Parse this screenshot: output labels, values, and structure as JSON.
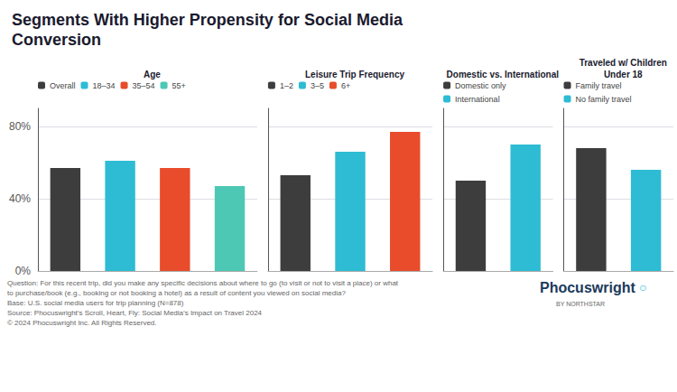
{
  "title": "Segments With Higher Propensity for Social Media\nConversion",
  "chart_data": [
    {
      "type": "bar",
      "title": "Age",
      "categories": [
        "Overall",
        "18–34",
        "35–54",
        "55+"
      ],
      "values": [
        57,
        61,
        57,
        47
      ],
      "colors": [
        "#3d3d3d",
        "#2dbcd4",
        "#e84c2b",
        "#4dc8b4"
      ],
      "ylim": [
        0,
        90
      ],
      "yticks": [
        {
          "value": 0,
          "label": "0%"
        },
        {
          "value": 40,
          "label": "40%"
        },
        {
          "value": 80,
          "label": "80%"
        }
      ],
      "grid": true,
      "legend": "top left",
      "tick_labels": "y"
    },
    {
      "type": "bar",
      "title": "Leisure Trip Frequency",
      "categories": [
        "1–2",
        "3–5",
        "6+"
      ],
      "values": [
        53,
        66,
        77
      ],
      "colors": [
        "#3d3d3d",
        "#2dbcd4",
        "#e84c2b"
      ],
      "ylim": [
        0,
        90
      ],
      "yticks": [
        {
          "value": 0,
          "label": "0%"
        },
        {
          "value": 40,
          "label": "40%"
        },
        {
          "value": 80,
          "label": "80%"
        }
      ],
      "grid": true,
      "legend": "top left",
      "tick_labels": false
    },
    {
      "type": "bar",
      "title": "Domestic vs. International",
      "categories": [
        "Domestic only",
        "International"
      ],
      "values": [
        50,
        70
      ],
      "colors": [
        "#3d3d3d",
        "#2dbcd4"
      ],
      "ylim": [
        0,
        90
      ],
      "yticks": [
        {
          "value": 0,
          "label": "0%"
        },
        {
          "value": 40,
          "label": "40%"
        },
        {
          "value": 80,
          "label": "80%"
        }
      ],
      "grid": true,
      "legend": "top left",
      "tick_labels": false
    },
    {
      "type": "bar",
      "title": "Traveled w/ Children\nUnder 18",
      "categories": [
        "Family travel",
        "No family travel"
      ],
      "values": [
        68,
        56
      ],
      "colors": [
        "#3d3d3d",
        "#2dbcd4"
      ],
      "ylim": [
        0,
        90
      ],
      "yticks": [
        {
          "value": 0,
          "label": "0%"
        },
        {
          "value": 40,
          "label": "40%"
        },
        {
          "value": 80,
          "label": "80%"
        }
      ],
      "grid": true,
      "legend": "top left",
      "tick_labels": false
    }
  ],
  "annotations": [
    {
      "text": "Question: For this recent trip, did you make any specific decisions about where to go (to visit or not to visit a place) or what"
    },
    {
      "text": "to purchase/book (e.g., booking or not booking a hotel) as a result of content you viewed on social media?"
    },
    {
      "text": "Base: U.S. social media users for trip planning (N=878)"
    },
    {
      "text": "Source: Phocuswright’s Scroll, Heart, Fly: Social Media’s Impact on Travel 2024"
    },
    {
      "text": "© 2024 Phocuswright Inc. All Rights Reserved."
    },
    {
      "text": "Phocuswright",
      "color": "#1a3a5c"
    },
    {
      "text": "○",
      "color": "#2dbcd4"
    },
    {
      "text": "BY NORTHSTAR"
    }
  ]
}
